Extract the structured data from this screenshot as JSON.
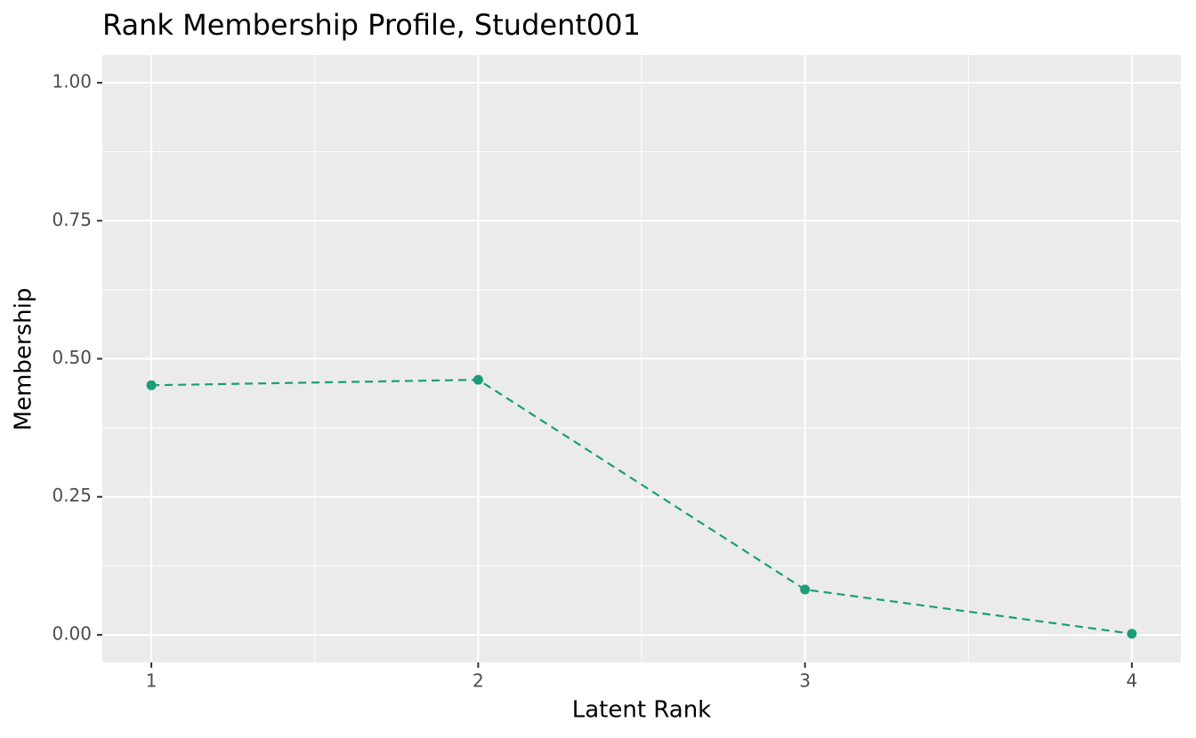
{
  "chart_data": {
    "type": "line",
    "title": "Rank Membership Profile, Student001",
    "x_label": "Latent Rank",
    "y_label": "Membership",
    "x": [
      1,
      2,
      3,
      4
    ],
    "series": [
      {
        "name": "Membership",
        "color": "#1b9e77",
        "values": [
          0.452,
          0.462,
          0.082,
          0.002
        ]
      }
    ],
    "xlim": [
      0.85,
      4.15
    ],
    "xticks": [
      1,
      2,
      3,
      4
    ],
    "ylim": [
      -0.05,
      1.05
    ],
    "yticks": [
      {
        "value": 0,
        "label": "0.00"
      },
      {
        "value": 0.25,
        "label": "0.25"
      },
      {
        "value": 0.5,
        "label": "0.50"
      },
      {
        "value": 0.75,
        "label": "0.75"
      },
      {
        "value": 1,
        "label": "1.00"
      }
    ],
    "grid": true,
    "line_style": "dashed"
  }
}
